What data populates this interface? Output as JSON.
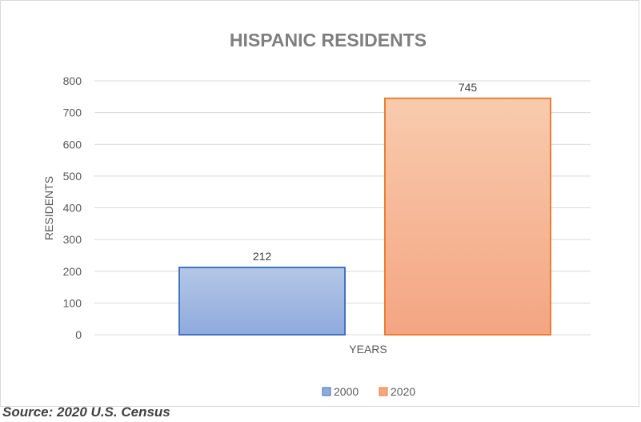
{
  "chart_data": {
    "type": "bar",
    "title": "HISPANIC RESIDENTS",
    "xlabel": "YEARS",
    "ylabel": "RESIDENTS",
    "ylim": [
      0,
      800
    ],
    "yticks": [
      0,
      100,
      200,
      300,
      400,
      500,
      600,
      700,
      800
    ],
    "categories": [
      ""
    ],
    "series": [
      {
        "name": "2000",
        "values": [
          212
        ],
        "color": "#8FAADC",
        "color_light": "#B4C7E7",
        "border": "#4472C4"
      },
      {
        "name": "2020",
        "values": [
          745
        ],
        "color": "#F4A582",
        "color_light": "#F8CBAD",
        "border": "#ED7D31"
      }
    ],
    "data_labels": true,
    "grid": true,
    "legend": "bottom"
  },
  "source": "Source: 2020 U.S. Census"
}
